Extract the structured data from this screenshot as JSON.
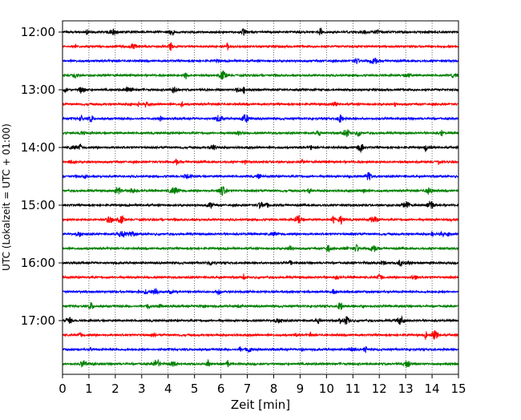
{
  "chart_data": {
    "type": "line",
    "title": "",
    "xlabel": "Zeit  [min]",
    "ylabel": "UTC (Lokalzeit = UTC + 01:00)",
    "xlim": [
      0,
      15
    ],
    "x_ticks": [
      "0",
      "1",
      "2",
      "3",
      "4",
      "5",
      "6",
      "7",
      "8",
      "9",
      "10",
      "11",
      "12",
      "13",
      "14",
      "15"
    ],
    "y_tick_labels": [
      "12:00",
      "13:00",
      "14:00",
      "15:00",
      "16:00",
      "17:00"
    ],
    "grid": "vertical dotted at each minute",
    "legend": "none",
    "trace_interval_minutes": 15,
    "first_trace": "12:00",
    "trace_count": 24,
    "trace_colors": [
      "#000000",
      "#ff0000",
      "#0000ff",
      "#008000"
    ]
  }
}
